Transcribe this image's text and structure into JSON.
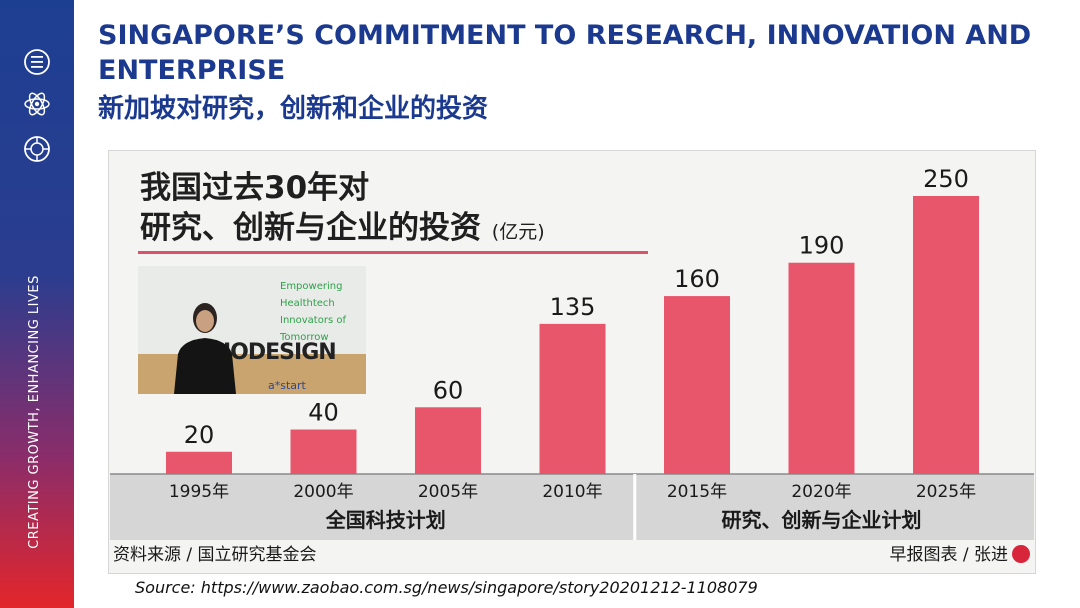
{
  "sidebar": {
    "tagline": "CREATING GROWTH, ENHANCING LIVES",
    "icons": [
      "binary-code-icon",
      "atom-icon",
      "circuit-brain-icon"
    ]
  },
  "slide": {
    "title_en": "SINGAPORE’S COMMITMENT TO RESEARCH, INNOVATION AND ENTERPRISE",
    "title_cn": "新加坡对研究，创新和企业的投资",
    "source": "Source: https://www.zaobao.com.sg/news/singapore/story20201212-1108079"
  },
  "video": {
    "green_text": "Empowering Healthtech Innovators of Tomorrow",
    "word": "IODESIGN",
    "logo": "a*start"
  },
  "colors": {
    "bar": "#e8566b",
    "title_blue": "#1b3a8f",
    "sidebar_top": "#1d3f92",
    "sidebar_bottom": "#e3262b"
  },
  "chart_data": {
    "type": "bar",
    "title_line1": "我国过去30年对",
    "title_line2": "研究、创新与企业的投资",
    "unit": "(亿元)",
    "categories": [
      "1995年",
      "2000年",
      "2005年",
      "2010年",
      "2015年",
      "2020年",
      "2025年"
    ],
    "values": [
      20,
      40,
      60,
      135,
      160,
      190,
      250
    ],
    "ylim": [
      0,
      250
    ],
    "groups": [
      {
        "label": "全国科技计划",
        "start": 0,
        "end": 3
      },
      {
        "label": "研究、创新与企业计划",
        "start": 4,
        "end": 6
      }
    ],
    "footer_left": "资料来源 / 国立研究基金会",
    "footer_right": "早报图表 / 张进",
    "legend": "none",
    "grid": false
  }
}
